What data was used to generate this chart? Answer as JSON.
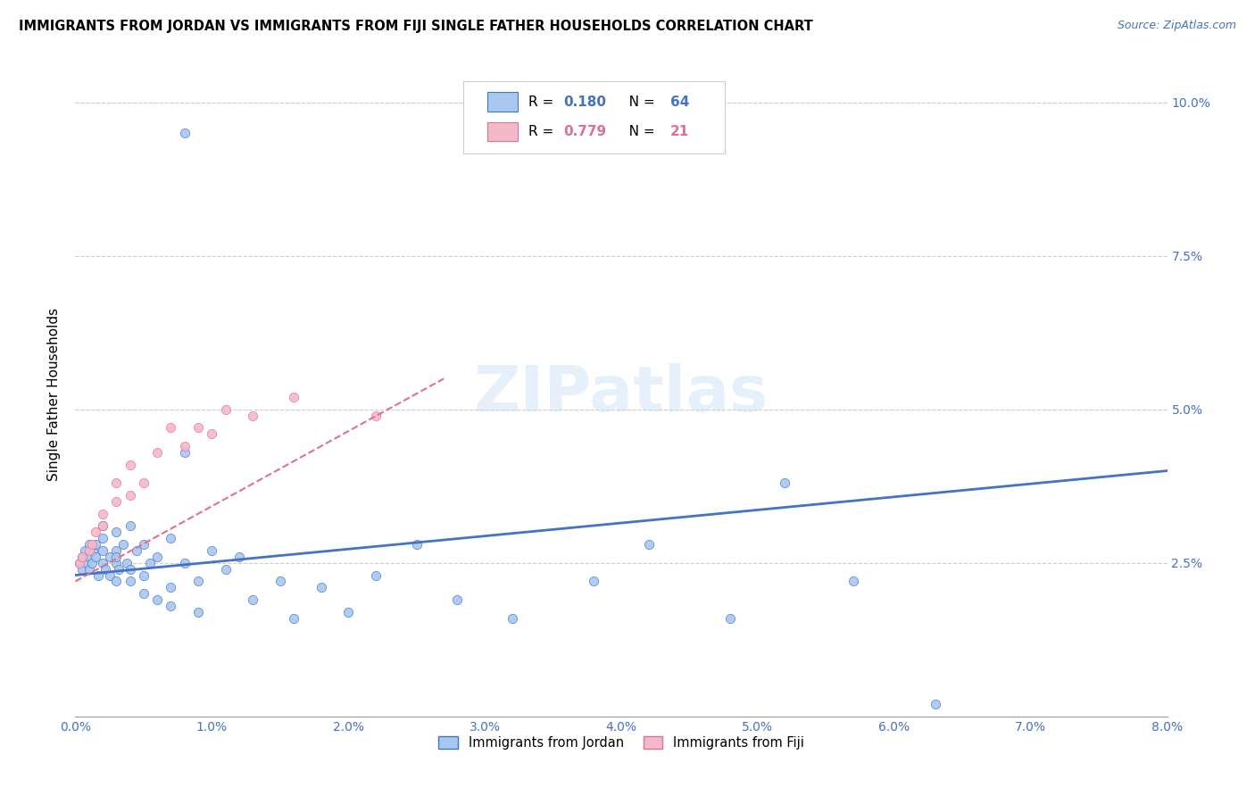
{
  "title": "IMMIGRANTS FROM JORDAN VS IMMIGRANTS FROM FIJI SINGLE FATHER HOUSEHOLDS CORRELATION CHART",
  "source": "Source: ZipAtlas.com",
  "ylabel": "Single Father Households",
  "ytick_labels": [
    "2.5%",
    "5.0%",
    "7.5%",
    "10.0%"
  ],
  "ytick_values": [
    0.025,
    0.05,
    0.075,
    0.1
  ],
  "xtick_values": [
    0.0,
    0.01,
    0.02,
    0.03,
    0.04,
    0.05,
    0.06,
    0.07,
    0.08
  ],
  "xtick_labels": [
    "0.0%",
    "1.0%",
    "2.0%",
    "3.0%",
    "4.0%",
    "5.0%",
    "6.0%",
    "7.0%",
    "8.0%"
  ],
  "xlim": [
    0.0,
    0.08
  ],
  "ylim": [
    0.0,
    0.105
  ],
  "jordan_color": "#a8c8f0",
  "fiji_color": "#f5b8c8",
  "jordan_line_color": "#4472c4",
  "fiji_line_color": "#e07090",
  "jordan_R": 0.18,
  "jordan_N": 64,
  "fiji_R": 0.779,
  "fiji_N": 21,
  "jordan_scatter_x": [
    0.0003,
    0.0005,
    0.0005,
    0.0007,
    0.0008,
    0.001,
    0.001,
    0.001,
    0.0012,
    0.0013,
    0.0015,
    0.0015,
    0.0017,
    0.002,
    0.002,
    0.002,
    0.002,
    0.0022,
    0.0025,
    0.0025,
    0.003,
    0.003,
    0.003,
    0.003,
    0.003,
    0.0032,
    0.0035,
    0.0038,
    0.004,
    0.004,
    0.004,
    0.0045,
    0.005,
    0.005,
    0.005,
    0.0055,
    0.006,
    0.006,
    0.007,
    0.007,
    0.007,
    0.008,
    0.008,
    0.009,
    0.009,
    0.01,
    0.011,
    0.012,
    0.013,
    0.015,
    0.016,
    0.018,
    0.02,
    0.022,
    0.025,
    0.028,
    0.032,
    0.038,
    0.042,
    0.048,
    0.052,
    0.057,
    0.063,
    0.008
  ],
  "jordan_scatter_y": [
    0.025,
    0.026,
    0.024,
    0.027,
    0.025,
    0.026,
    0.028,
    0.024,
    0.025,
    0.027,
    0.026,
    0.028,
    0.023,
    0.025,
    0.027,
    0.029,
    0.031,
    0.024,
    0.026,
    0.023,
    0.025,
    0.027,
    0.022,
    0.03,
    0.026,
    0.024,
    0.028,
    0.025,
    0.022,
    0.024,
    0.031,
    0.027,
    0.02,
    0.023,
    0.028,
    0.025,
    0.019,
    0.026,
    0.021,
    0.018,
    0.029,
    0.025,
    0.043,
    0.017,
    0.022,
    0.027,
    0.024,
    0.026,
    0.019,
    0.022,
    0.016,
    0.021,
    0.017,
    0.023,
    0.028,
    0.019,
    0.016,
    0.022,
    0.028,
    0.016,
    0.038,
    0.022,
    0.002,
    0.095
  ],
  "fiji_scatter_x": [
    0.0003,
    0.0005,
    0.001,
    0.0012,
    0.0015,
    0.002,
    0.002,
    0.003,
    0.003,
    0.004,
    0.004,
    0.005,
    0.006,
    0.007,
    0.008,
    0.009,
    0.01,
    0.011,
    0.013,
    0.016,
    0.022
  ],
  "fiji_scatter_y": [
    0.025,
    0.026,
    0.027,
    0.028,
    0.03,
    0.031,
    0.033,
    0.035,
    0.038,
    0.036,
    0.041,
    0.038,
    0.043,
    0.047,
    0.044,
    0.047,
    0.046,
    0.05,
    0.049,
    0.052,
    0.049
  ],
  "jordan_trend_x": [
    0.0,
    0.08
  ],
  "jordan_trend_y": [
    0.023,
    0.04
  ],
  "fiji_trend_x": [
    0.0,
    0.027
  ],
  "fiji_trend_y": [
    0.022,
    0.055
  ],
  "watermark": "ZIPatlas",
  "legend_jordan_label": "Immigrants from Jordan",
  "legend_fiji_label": "Immigrants from Fiji"
}
